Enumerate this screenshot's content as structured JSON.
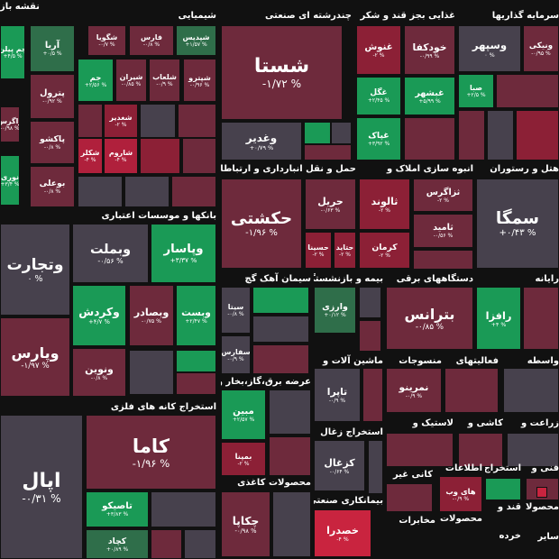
{
  "map": {
    "title": "نقشه باز",
    "sectors": [
      {
        "tiles": [
          {
            "name": "جم پیلن",
            "change": "+۴/۵ %",
            "color": "#1a9a56"
          },
          {
            "name": "زاگرس",
            "change": "-۰/۹۸ %",
            "color": "#6e2a3c"
          },
          {
            "name": "نوری",
            "change": "+۳/۴ %",
            "color": "#1a9a56"
          }
        ]
      },
      {
        "title": "شیمیایی",
        "tiles": [
          {
            "name": "شگویا",
            "change": "-۰/۷ %",
            "color": "#6e2a3c"
          },
          {
            "name": "شپدیس",
            "change": "+۱/۵۷ %",
            "color": "#2f6e4a"
          },
          {
            "name": "فارس",
            "change": "-۰/۸ %",
            "color": "#6e2a3c"
          },
          {
            "name": "آریا",
            "change": "+۰/۵ %",
            "color": "#2f6e4a"
          },
          {
            "name": "پترول",
            "change": "-۰/۹۲ %",
            "color": "#6e2a3c"
          },
          {
            "name": "پاکشو",
            "change": "-۰/۸ %",
            "color": "#6e2a3c"
          },
          {
            "name": "بوعلی",
            "change": "-۰/۸ %",
            "color": "#6e2a3c"
          },
          {
            "name": "جم",
            "change": "+۲/۵۶ %",
            "color": "#1a9a56"
          },
          {
            "name": "شیران",
            "change": "-۰/۸۵ %",
            "color": "#6e2a3c"
          },
          {
            "name": "شلعاب",
            "change": "-۰/۹ %",
            "color": "#6e2a3c"
          },
          {
            "name": "شپترو",
            "change": "-۰/۹۶ %",
            "color": "#6e2a3c"
          },
          {
            "name": "شغدیر",
            "change": "-۲ %",
            "color": "#8c2036"
          },
          {
            "name": "شکلر",
            "change": "-۴ %",
            "color": "#b0203c"
          },
          {
            "name": "شاروم",
            "change": "-۴ %",
            "color": "#b0203c"
          }
        ]
      },
      {
        "title": "بانکها و موسسات اعتباری",
        "tiles": [
          {
            "name": "وتجارت",
            "change": "۰ %",
            "color": "#47414d"
          },
          {
            "name": "وبملت",
            "change": "-۰/۵۶ %",
            "color": "#47414d"
          },
          {
            "name": "وپاسار",
            "change": "+۳/۳۷ %",
            "color": "#1a9a56"
          },
          {
            "name": "وکردش",
            "change": "+۴/۷ %",
            "color": "#1a9a56"
          },
          {
            "name": "وبصادر",
            "change": "-۰/۷۵ %",
            "color": "#6e2a3c"
          },
          {
            "name": "وبست",
            "change": "+۲/۴۷ %",
            "color": "#1a9a56"
          },
          {
            "name": "وپارس",
            "change": "-۱/۹۷ %",
            "color": "#6e2a3c"
          },
          {
            "name": "ونوین",
            "change": "-۰/۸ %",
            "color": "#6e2a3c"
          }
        ]
      },
      {
        "title": "استخراج کانه های فلزی",
        "tiles": [
          {
            "name": "اپال",
            "change": "-۰/۳۱ %",
            "color": "#47414d"
          },
          {
            "name": "کاما",
            "change": "-۱/۹۶ %",
            "color": "#6e2a3c"
          },
          {
            "name": "تاصیکو",
            "change": "+۳/۸۳ %",
            "color": "#1a9a56"
          },
          {
            "name": "کچاد",
            "change": "+۰/۸۹ %",
            "color": "#2f6e4a"
          }
        ]
      },
      {
        "title": "چندرشته ای صنعتی",
        "tiles": [
          {
            "name": "شستا",
            "change": "-۱/۷۲ %",
            "color": "#6e2a3c"
          },
          {
            "name": "وغدیر",
            "change": "+۰/۷۹ %",
            "color": "#47414d"
          }
        ]
      },
      {
        "title": "غذایی بجز قند و شکر",
        "tiles": [
          {
            "name": "غنوش",
            "change": "-۲ %",
            "color": "#8c2036"
          },
          {
            "name": "خودکفا",
            "change": "-۰/۹۹ %",
            "color": "#6e2a3c"
          },
          {
            "name": "غگل",
            "change": "+۲/۴۵ %",
            "color": "#1a9a56"
          },
          {
            "name": "غبشهر",
            "change": "+۵/۹۹ %",
            "color": "#1a9a56"
          },
          {
            "name": "غپاک",
            "change": "+۳/۹۲ %",
            "color": "#1a9a56"
          }
        ]
      },
      {
        "title": "سرمایه گذاریها",
        "tiles": [
          {
            "name": "وسپهر",
            "change": "۰ %",
            "color": "#47414d"
          },
          {
            "name": "ونیکی",
            "change": "-۰/۹۵ %",
            "color": "#6e2a3c"
          },
          {
            "name": "صبا",
            "change": "+۲/۵ %",
            "color": "#1a9a56"
          }
        ]
      },
      {
        "title": "حمل و نقل انبارداری و ارتباطات",
        "tiles": [
          {
            "name": "حکشتی",
            "change": "-۱/۹۶ %",
            "color": "#6e2a3c"
          },
          {
            "name": "حریل",
            "change": "-۰/۶۳ %",
            "color": "#6e2a3c"
          },
          {
            "name": "حسینا",
            "change": "-۲ %",
            "color": "#8c2036"
          },
          {
            "name": "حتاید",
            "change": "-۲ %",
            "color": "#8c2036"
          }
        ]
      },
      {
        "title": "انبوه سازی املاک و",
        "tiles": [
          {
            "name": "ثالوند",
            "change": "-۲ %",
            "color": "#8c2036"
          },
          {
            "name": "ثزاگرس",
            "change": "-۲ %",
            "color": "#6e2a3c"
          },
          {
            "name": "کرمان",
            "change": "-۲ %",
            "color": "#8c2036"
          },
          {
            "name": "ثامید",
            "change": "-۰/۵۶ %",
            "color": "#6e2a3c"
          }
        ]
      },
      {
        "title": "هتل و رستوران",
        "tiles": [
          {
            "name": "سمگا",
            "change": "+۰/۴۳ %",
            "color": "#47414d"
          }
        ]
      },
      {
        "title": "سیمان آهک گچ",
        "tiles": [
          {
            "name": "سیتا",
            "change": "-۰/۸ %",
            "color": "#47414d"
          },
          {
            "name": "سفارس",
            "change": "-۰/۹ %",
            "color": "#47414d"
          }
        ]
      },
      {
        "title": "بیمه و بازنشستگی",
        "tiles": [
          {
            "name": "وارزی",
            "change": "+۰/۱۲ %",
            "color": "#2f6e4a"
          }
        ]
      },
      {
        "title": "دستگاههای برقی",
        "tiles": [
          {
            "name": "بترانس",
            "change": "-۰/۸۵ %",
            "color": "#6e2a3c"
          }
        ]
      },
      {
        "title": "رایانه",
        "tiles": [
          {
            "name": "رافزا",
            "change": "+۴ %",
            "color": "#1a9a56"
          }
        ]
      },
      {
        "title": "عرضه برق،گاز،بخار و",
        "tiles": [
          {
            "name": "مبین",
            "change": "+۲/۵۷ %",
            "color": "#1a9a56"
          },
          {
            "name": "بمپنا",
            "change": "-۲ %",
            "color": "#8c2036"
          }
        ]
      },
      {
        "title": "ماشین آلات و",
        "tiles": [
          {
            "name": "تاپرا",
            "change": "-۰/۹ %",
            "color": "#47414d"
          }
        ]
      },
      {
        "title": "منسوجات",
        "tiles": [
          {
            "name": "نمرینو",
            "change": "-۰/۹ %",
            "color": "#6e2a3c"
          }
        ]
      },
      {
        "title": "فعالیتهای",
        "tiles": []
      },
      {
        "title": "واسطه",
        "tiles": []
      },
      {
        "title": "استخراج زغال",
        "tiles": [
          {
            "name": "کزغال",
            "change": "-۰/۶۴ %",
            "color": "#47414d"
          }
        ]
      },
      {
        "title": "لاستیک و",
        "tiles": []
      },
      {
        "title": "کاشی و",
        "tiles": []
      },
      {
        "title": "زراعت و",
        "tiles": []
      },
      {
        "title": "محصولات کاغذی",
        "tiles": [
          {
            "name": "چکاپا",
            "change": "-۰/۹۸ %",
            "color": "#6e2a3c"
          }
        ]
      },
      {
        "title": "بیمانکاری صنعتی",
        "tiles": [
          {
            "name": "خصدرا",
            "change": "-۴ %",
            "color": "#c9243f"
          }
        ]
      },
      {
        "title": "کانی غیر",
        "tiles": []
      },
      {
        "title": "اطلاعات",
        "tiles": [
          {
            "name": "های وب",
            "change": "-۰/۹ %",
            "color": "#8c2036"
          }
        ]
      },
      {
        "title": "استخراج",
        "tiles": []
      },
      {
        "title": "فنی و",
        "tiles": []
      },
      {
        "title": "مخابرات",
        "tiles": []
      },
      {
        "title": "محصولات",
        "tiles": []
      },
      {
        "title": "قند و",
        "tiles": []
      },
      {
        "title": "خرده",
        "tiles": []
      },
      {
        "title": "محصولا",
        "tiles": []
      },
      {
        "title": "سایر",
        "tiles": []
      }
    ]
  }
}
